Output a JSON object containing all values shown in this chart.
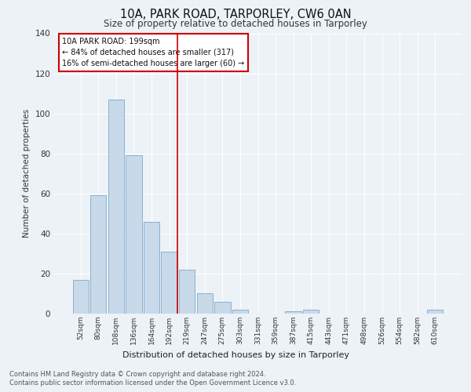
{
  "title": "10A, PARK ROAD, TARPORLEY, CW6 0AN",
  "subtitle": "Size of property relative to detached houses in Tarporley",
  "xlabel": "Distribution of detached houses by size in Tarporley",
  "ylabel": "Number of detached properties",
  "categories": [
    "52sqm",
    "80sqm",
    "108sqm",
    "136sqm",
    "164sqm",
    "192sqm",
    "219sqm",
    "247sqm",
    "275sqm",
    "303sqm",
    "331sqm",
    "359sqm",
    "387sqm",
    "415sqm",
    "443sqm",
    "471sqm",
    "498sqm",
    "526sqm",
    "554sqm",
    "582sqm",
    "610sqm"
  ],
  "values": [
    17,
    59,
    107,
    79,
    46,
    31,
    22,
    10,
    6,
    2,
    0,
    0,
    1,
    2,
    0,
    0,
    0,
    0,
    0,
    0,
    2
  ],
  "bar_color": "#c8d9ea",
  "bar_edge_color": "#7aaac8",
  "vline_x_index": 5,
  "vline_color": "#cc0000",
  "box_text_lines": [
    "10A PARK ROAD: 199sqm",
    "← 84% of detached houses are smaller (317)",
    "16% of semi-detached houses are larger (60) →"
  ],
  "box_color": "#cc0000",
  "ylim": [
    0,
    140
  ],
  "yticks": [
    0,
    20,
    40,
    60,
    80,
    100,
    120,
    140
  ],
  "background_color": "#edf2f7",
  "grid_color": "#ffffff",
  "footer_line1": "Contains HM Land Registry data © Crown copyright and database right 2024.",
  "footer_line2": "Contains public sector information licensed under the Open Government Licence v3.0."
}
